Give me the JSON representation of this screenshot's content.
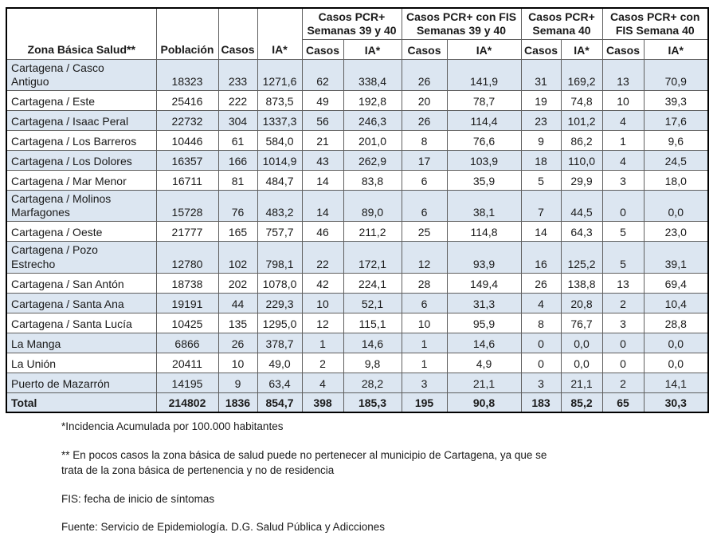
{
  "header": {
    "row_label_cols": [
      "Zona Básica Salud**",
      "Población",
      "Casos",
      "IA*"
    ],
    "groups": [
      "Casos PCR+\nSemanas 39 y 40",
      "Casos PCR+ con FIS\nSemanas 39 y 40",
      "Casos PCR+\nSemana 40",
      "Casos PCR+ con\nFIS Semana 40"
    ],
    "subcolumns": [
      "Casos",
      "IA*",
      "Casos",
      "IA*",
      "Casos",
      "IA*",
      "Casos",
      "IA*"
    ]
  },
  "rows": [
    {
      "zona": "Cartagena / Casco\nAntiguo",
      "values": [
        "18323",
        "233",
        "1271,6",
        "62",
        "338,4",
        "26",
        "141,9",
        "31",
        "169,2",
        "13",
        "70,9"
      ]
    },
    {
      "zona": "Cartagena / Este",
      "values": [
        "25416",
        "222",
        "873,5",
        "49",
        "192,8",
        "20",
        "78,7",
        "19",
        "74,8",
        "10",
        "39,3"
      ]
    },
    {
      "zona": "Cartagena / Isaac Peral",
      "values": [
        "22732",
        "304",
        "1337,3",
        "56",
        "246,3",
        "26",
        "114,4",
        "23",
        "101,2",
        "4",
        "17,6"
      ]
    },
    {
      "zona": "Cartagena / Los Barreros",
      "values": [
        "10446",
        "61",
        "584,0",
        "21",
        "201,0",
        "8",
        "76,6",
        "9",
        "86,2",
        "1",
        "9,6"
      ]
    },
    {
      "zona": "Cartagena / Los Dolores",
      "values": [
        "16357",
        "166",
        "1014,9",
        "43",
        "262,9",
        "17",
        "103,9",
        "18",
        "110,0",
        "4",
        "24,5"
      ]
    },
    {
      "zona": "Cartagena / Mar Menor",
      "values": [
        "16711",
        "81",
        "484,7",
        "14",
        "83,8",
        "6",
        "35,9",
        "5",
        "29,9",
        "3",
        "18,0"
      ]
    },
    {
      "zona": "Cartagena / Molinos\nMarfagones",
      "values": [
        "15728",
        "76",
        "483,2",
        "14",
        "89,0",
        "6",
        "38,1",
        "7",
        "44,5",
        "0",
        "0,0"
      ]
    },
    {
      "zona": "Cartagena / Oeste",
      "values": [
        "21777",
        "165",
        "757,7",
        "46",
        "211,2",
        "25",
        "114,8",
        "14",
        "64,3",
        "5",
        "23,0"
      ]
    },
    {
      "zona": "Cartagena / Pozo\nEstrecho",
      "values": [
        "12780",
        "102",
        "798,1",
        "22",
        "172,1",
        "12",
        "93,9",
        "16",
        "125,2",
        "5",
        "39,1"
      ]
    },
    {
      "zona": "Cartagena / San Antón",
      "values": [
        "18738",
        "202",
        "1078,0",
        "42",
        "224,1",
        "28",
        "149,4",
        "26",
        "138,8",
        "13",
        "69,4"
      ]
    },
    {
      "zona": "Cartagena / Santa Ana",
      "values": [
        "19191",
        "44",
        "229,3",
        "10",
        "52,1",
        "6",
        "31,3",
        "4",
        "20,8",
        "2",
        "10,4"
      ]
    },
    {
      "zona": "Cartagena / Santa Lucía",
      "values": [
        "10425",
        "135",
        "1295,0",
        "12",
        "115,1",
        "10",
        "95,9",
        "8",
        "76,7",
        "3",
        "28,8"
      ]
    },
    {
      "zona": "La Manga",
      "values": [
        "6866",
        "26",
        "378,7",
        "1",
        "14,6",
        "1",
        "14,6",
        "0",
        "0,0",
        "0",
        "0,0"
      ]
    },
    {
      "zona": "La Unión",
      "values": [
        "20411",
        "10",
        "49,0",
        "2",
        "9,8",
        "1",
        "4,9",
        "0",
        "0,0",
        "0",
        "0,0"
      ]
    },
    {
      "zona": "Puerto de Mazarrón",
      "values": [
        "14195",
        "9",
        "63,4",
        "4",
        "28,2",
        "3",
        "21,1",
        "3",
        "21,1",
        "2",
        "14,1"
      ]
    },
    {
      "zona": "Total",
      "is_total": true,
      "values": [
        "214802",
        "1836",
        "854,7",
        "398",
        "185,3",
        "195",
        "90,8",
        "183",
        "85,2",
        "65",
        "30,3"
      ]
    }
  ],
  "footnotes": [
    "*Incidencia Acumulada por 100.000 habitantes",
    "** En pocos casos la zona básica de salud puede no pertenecer al municipio de Cartagena, ya que se\ntrata de la zona básica de pertenencia y no de residencia",
    "FIS: fecha de inicio de síntomas",
    "Fuente: Servicio de Epidemiología. D.G. Salud Pública y Adicciones"
  ],
  "colors": {
    "row_shade": "#dce6f1",
    "grid_line": "#5f5f5f",
    "outer_border": "#000000",
    "text": "#1a1a1a"
  }
}
